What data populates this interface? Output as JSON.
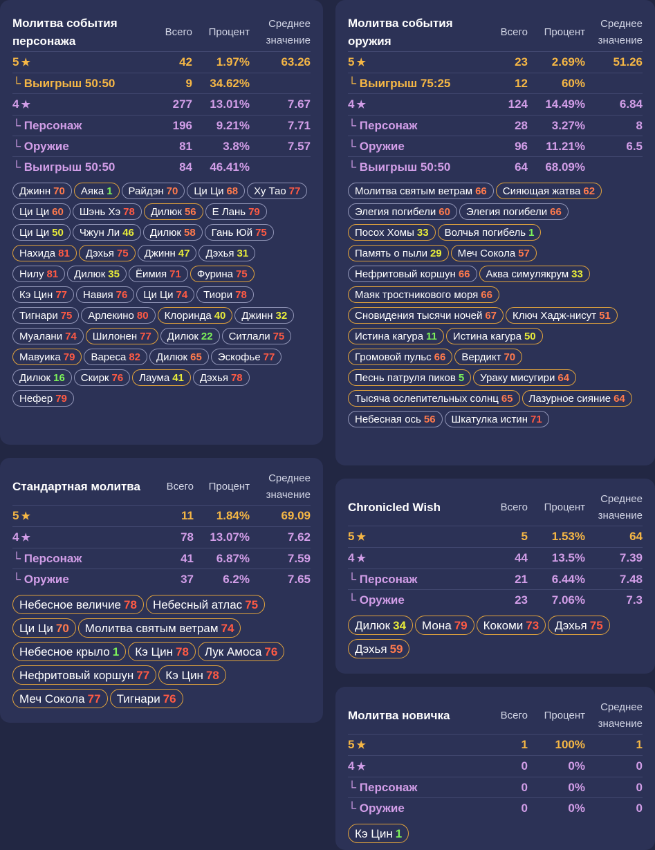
{
  "headers": {
    "total": "Всего",
    "percent": "Процент",
    "average_line1": "Среднее",
    "average_line2": "значение"
  },
  "colors": {
    "gold": "#f6b745",
    "purple": "#d29ee8",
    "num_green": "#7cf25a",
    "num_yellow": "#e8ec3a",
    "num_orange": "#ff7a4d",
    "num_red": "#ff5a44",
    "bg": "#222743",
    "panel": "#2c3256"
  },
  "char": {
    "title_1": "Молитва события",
    "title_2": "персонажа",
    "rows": [
      {
        "label": "5",
        "star": "★",
        "total": "42",
        "pct": "1.97%",
        "avg": "63.26"
      },
      {
        "label": "└ Выигрыш 50:50",
        "total": "9",
        "pct": "34.62%",
        "avg": ""
      },
      {
        "label": "4",
        "star": "★",
        "total": "277",
        "pct": "13.01%",
        "avg": "7.67"
      },
      {
        "label": "└ Персонаж",
        "total": "196",
        "pct": "9.21%",
        "avg": "7.71"
      },
      {
        "label": "└ Оружие",
        "total": "81",
        "pct": "3.8%",
        "avg": "7.57"
      },
      {
        "label": "└ Выигрыш 50:50",
        "total": "84",
        "pct": "46.41%",
        "avg": ""
      }
    ],
    "tags": [
      {
        "name": "Джинн",
        "num": "70"
      },
      {
        "name": "Аяка",
        "num": "1"
      },
      {
        "name": "Райдэн",
        "num": "70"
      },
      {
        "name": "Ци Ци",
        "num": "68"
      },
      {
        "name": "Ху Тао",
        "num": "77"
      },
      {
        "name": "Ци Ци",
        "num": "60"
      },
      {
        "name": "Шэнь Хэ",
        "num": "78"
      },
      {
        "name": "Дилюк",
        "num": "56"
      },
      {
        "name": "Е Лань",
        "num": "79"
      },
      {
        "name": "Ци Ци",
        "num": "50"
      },
      {
        "name": "Чжун Ли",
        "num": "46"
      },
      {
        "name": "Дилюк",
        "num": "58"
      },
      {
        "name": "Гань Юй",
        "num": "75"
      },
      {
        "name": "Нахида",
        "num": "81"
      },
      {
        "name": "Дэхья",
        "num": "75"
      },
      {
        "name": "Джинн",
        "num": "47"
      },
      {
        "name": "Дэхья",
        "num": "31"
      },
      {
        "name": "Нилу",
        "num": "81"
      },
      {
        "name": "Дилюк",
        "num": "35"
      },
      {
        "name": "Ёимия",
        "num": "71"
      },
      {
        "name": "Фурина",
        "num": "75"
      },
      {
        "name": "Кэ Цин",
        "num": "77"
      },
      {
        "name": "Навия",
        "num": "76"
      },
      {
        "name": "Ци Ци",
        "num": "74"
      },
      {
        "name": "Тиори",
        "num": "78"
      },
      {
        "name": "Тигнари",
        "num": "75"
      },
      {
        "name": "Арлекино",
        "num": "80"
      },
      {
        "name": "Клоринда",
        "num": "40"
      },
      {
        "name": "Джинн",
        "num": "32"
      },
      {
        "name": "Муалани",
        "num": "74"
      },
      {
        "name": "Шилонен",
        "num": "77"
      },
      {
        "name": "Дилюк",
        "num": "22"
      },
      {
        "name": "Ситлали",
        "num": "75"
      },
      {
        "name": "Мавуика",
        "num": "79"
      },
      {
        "name": "Вареса",
        "num": "82"
      },
      {
        "name": "Дилюк",
        "num": "65"
      },
      {
        "name": "Эскофье",
        "num": "77"
      },
      {
        "name": "Дилюк",
        "num": "16"
      },
      {
        "name": "Скирк",
        "num": "76"
      },
      {
        "name": "Лаума",
        "num": "41"
      },
      {
        "name": "Дэхья",
        "num": "78"
      },
      {
        "name": "Нефер",
        "num": "79"
      }
    ]
  },
  "weap": {
    "title_1": "Молитва события",
    "title_2": "оружия",
    "rows": [
      {
        "label": "5",
        "star": "★",
        "total": "23",
        "pct": "2.69%",
        "avg": "51.26"
      },
      {
        "label": "└ Выигрыш 75:25",
        "total": "12",
        "pct": "60%",
        "avg": ""
      },
      {
        "label": "4",
        "star": "★",
        "total": "124",
        "pct": "14.49%",
        "avg": "6.84"
      },
      {
        "label": "└ Персонаж",
        "total": "28",
        "pct": "3.27%",
        "avg": "8"
      },
      {
        "label": "└ Оружие",
        "total": "96",
        "pct": "11.21%",
        "avg": "6.5"
      },
      {
        "label": "└ Выигрыш 50:50",
        "total": "64",
        "pct": "68.09%",
        "avg": ""
      }
    ],
    "tags": [
      {
        "name": "Молитва святым ветрам",
        "num": "66"
      },
      {
        "name": "Сияющая жатва",
        "num": "62"
      },
      {
        "name": "Элегия погибели",
        "num": "60"
      },
      {
        "name": "Элегия погибели",
        "num": "66"
      },
      {
        "name": "Посох Хомы",
        "num": "33"
      },
      {
        "name": "Волчья погибель",
        "num": "1"
      },
      {
        "name": "Память о пыли",
        "num": "29"
      },
      {
        "name": "Меч Сокола",
        "num": "57"
      },
      {
        "name": "Нефритовый коршун",
        "num": "66"
      },
      {
        "name": "Аква симулякрум",
        "num": "33"
      },
      {
        "name": "Маяк тростникового моря",
        "num": "66"
      },
      {
        "name": "Сновидения тысячи ночей",
        "num": "67"
      },
      {
        "name": "Ключ Хадж-нисут",
        "num": "51"
      },
      {
        "name": "Истина кагура",
        "num": "11"
      },
      {
        "name": "Истина кагура",
        "num": "50"
      },
      {
        "name": "Громовой пульс",
        "num": "66"
      },
      {
        "name": "Вердикт",
        "num": "70"
      },
      {
        "name": "Песнь патруля пиков",
        "num": "5"
      },
      {
        "name": "Ураку мисугири",
        "num": "64"
      },
      {
        "name": "Тысяча ослепительных солнц",
        "num": "65"
      },
      {
        "name": "Лазурное сияние",
        "num": "64"
      },
      {
        "name": "Небесная ось",
        "num": "56"
      },
      {
        "name": "Шкатулка истин",
        "num": "71"
      }
    ]
  },
  "std": {
    "title_1": "Стандартная молитва",
    "rows": [
      {
        "label": "5",
        "star": "★",
        "total": "11",
        "pct": "1.84%",
        "avg": "69.09"
      },
      {
        "label": "4",
        "star": "★",
        "total": "78",
        "pct": "13.07%",
        "avg": "7.62"
      },
      {
        "label": "└ Персонаж",
        "total": "41",
        "pct": "6.87%",
        "avg": "7.59"
      },
      {
        "label": "└ Оружие",
        "total": "37",
        "pct": "6.2%",
        "avg": "7.65"
      }
    ],
    "tags": [
      {
        "name": "Небесное величие",
        "num": "78"
      },
      {
        "name": "Небесный атлас",
        "num": "75"
      },
      {
        "name": "Ци Ци",
        "num": "70"
      },
      {
        "name": "Молитва святым ветрам",
        "num": "74"
      },
      {
        "name": "Небесное крыло",
        "num": "1"
      },
      {
        "name": "Кэ Цин",
        "num": "78"
      },
      {
        "name": "Лук Амоса",
        "num": "76"
      },
      {
        "name": "Нефритовый коршун",
        "num": "77"
      },
      {
        "name": "Кэ Цин",
        "num": "78"
      },
      {
        "name": "Меч Сокола",
        "num": "77"
      },
      {
        "name": "Тигнари",
        "num": "76"
      }
    ]
  },
  "chron": {
    "title_1": "Chronicled Wish",
    "rows": [
      {
        "label": "5",
        "star": "★",
        "total": "5",
        "pct": "1.53%",
        "avg": "64"
      },
      {
        "label": "4",
        "star": "★",
        "total": "44",
        "pct": "13.5%",
        "avg": "7.39"
      },
      {
        "label": "└ Персонаж",
        "total": "21",
        "pct": "6.44%",
        "avg": "7.48"
      },
      {
        "label": "└ Оружие",
        "total": "23",
        "pct": "7.06%",
        "avg": "7.3"
      }
    ],
    "tags": [
      {
        "name": "Дилюк",
        "num": "34"
      },
      {
        "name": "Мона",
        "num": "79"
      },
      {
        "name": "Кокоми",
        "num": "73"
      },
      {
        "name": "Дэхья",
        "num": "75"
      },
      {
        "name": "Дэхья",
        "num": "59"
      }
    ]
  },
  "novice": {
    "title_1": "Молитва новичка",
    "rows": [
      {
        "label": "5",
        "star": "★",
        "total": "1",
        "pct": "100%",
        "avg": "1"
      },
      {
        "label": "4",
        "star": "★",
        "total": "0",
        "pct": "0%",
        "avg": "0"
      },
      {
        "label": "└ Персонаж",
        "total": "0",
        "pct": "0%",
        "avg": "0"
      },
      {
        "label": "└ Оружие",
        "total": "0",
        "pct": "0%",
        "avg": "0"
      }
    ],
    "tags": [
      {
        "name": "Кэ Цин",
        "num": "1"
      }
    ]
  }
}
